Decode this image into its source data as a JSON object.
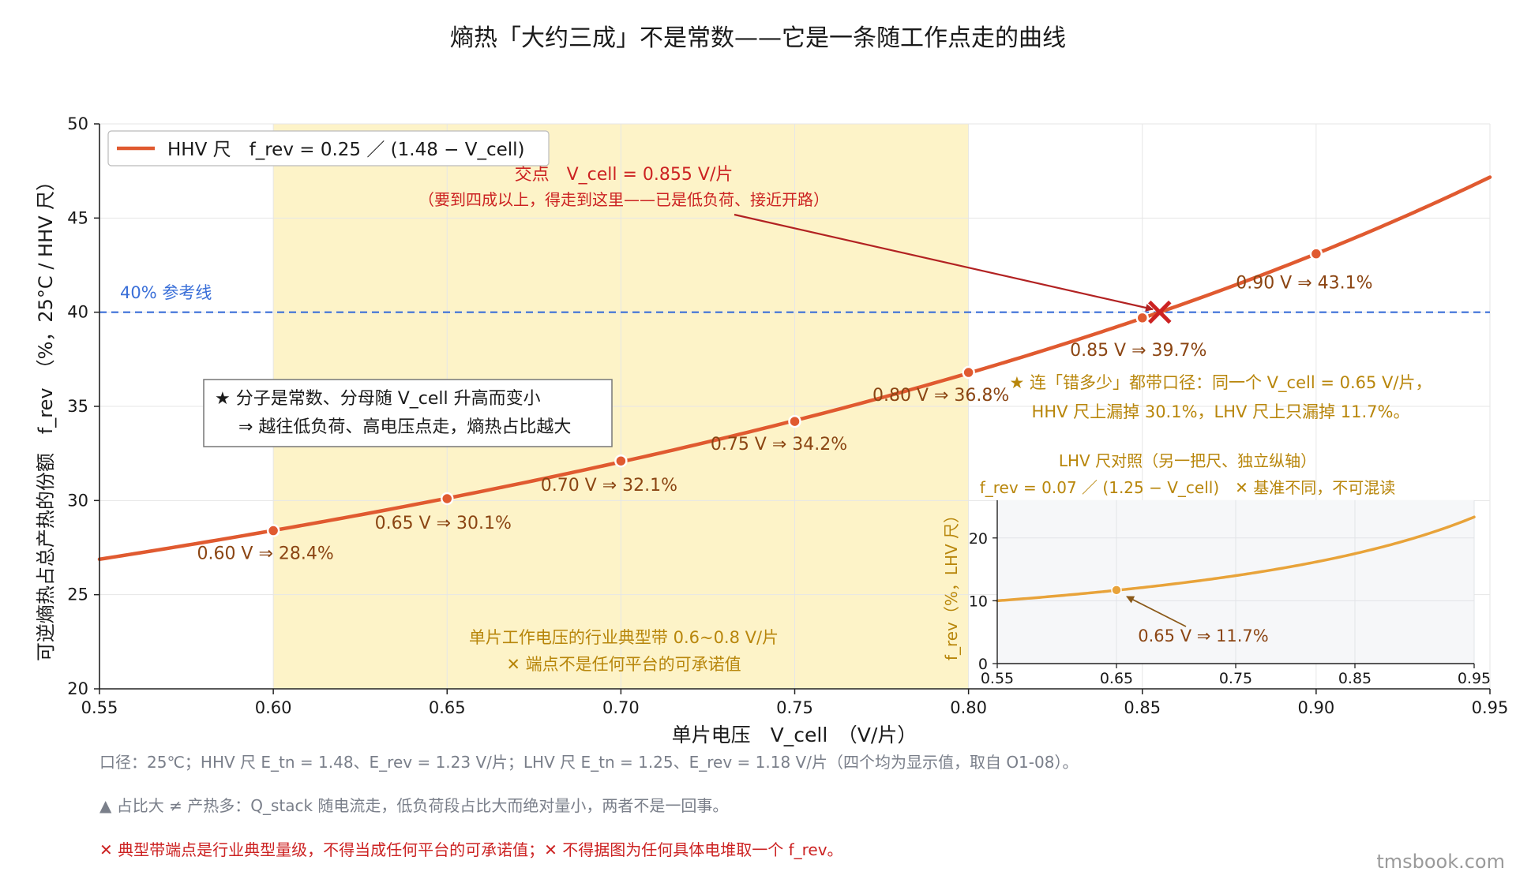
{
  "chart_data": [
    {
      "type": "line",
      "title": "熵热「大约三成」不是常数——它是一条随工作点走的曲线",
      "xlabel": "单片电压　V_cell　（V/片）",
      "ylabel": "可逆熵热占总产热的份额　f_rev　（%，25°C / HHV 尺）",
      "xlim": [
        0.55,
        0.95
      ],
      "ylim": [
        20,
        50
      ],
      "xticks": [
        "0.55",
        "0.60",
        "0.65",
        "0.70",
        "0.75",
        "0.80",
        "0.85",
        "0.90",
        "0.95"
      ],
      "yticks": [
        "20",
        "25",
        "30",
        "35",
        "40",
        "45",
        "50"
      ],
      "grid": true,
      "legend_position": "top-left",
      "series": [
        {
          "name": "HHV 尺　f_rev = 0.25 ／ (1.48 − V_cell)",
          "color": "#e05a30",
          "formula": {
            "a": 0.25,
            "b": 1.48
          }
        }
      ],
      "points": [
        {
          "x": 0.6,
          "y": 28.4,
          "label": "0.60 V ⇒ 28.4%"
        },
        {
          "x": 0.65,
          "y": 30.1,
          "label": "0.65 V ⇒ 30.1%"
        },
        {
          "x": 0.7,
          "y": 32.1,
          "label": "0.70 V ⇒ 32.1%"
        },
        {
          "x": 0.75,
          "y": 34.2,
          "label": "0.75 V ⇒ 34.2%"
        },
        {
          "x": 0.8,
          "y": 36.8,
          "label": "0.80 V ⇒ 36.8%"
        },
        {
          "x": 0.85,
          "y": 39.7,
          "label": "0.85 V ⇒ 39.7%"
        },
        {
          "x": 0.9,
          "y": 43.1,
          "label": "0.90 V ⇒ 43.1%"
        }
      ],
      "reference_line": {
        "y": 40,
        "label": "40% 参考线",
        "color": "#3a6fd8"
      },
      "band": {
        "x": [
          0.6,
          0.8
        ],
        "color": "#fdf3c8",
        "label_1": "单片工作电压的行业典型带 0.6~0.8 V/片",
        "label_2": "✕ 端点不是任何平台的可承诺值"
      },
      "intersection": {
        "x": 0.855,
        "y": 40,
        "label_1": "交点　V_cell = 0.855 V/片",
        "label_2": "（要到四成以上，得走到这里——已是低负荷、接近开路）"
      },
      "callout_box": {
        "line_1": "★ 分子是常数、分母随 V_cell 升高而变小",
        "line_2": "⇒ 越往低负荷、高电压点走，熵热占比越大"
      },
      "note": {
        "line_1": "★ 连「错多少」都带口径：同一个 V_cell = 0.65 V/片，",
        "line_2": "HHV 尺上漏掉 30.1%，LHV 尺上只漏掉 11.7%。"
      }
    },
    {
      "type": "line",
      "title": "LHV 尺对照（另一把尺、独立纵轴）",
      "subtitle": "f_rev = 0.07 ／ (1.25 − V_cell)　✕ 基准不同，不可混读",
      "ylabel": "f_rev（%，LHV 尺）",
      "xlim": [
        0.55,
        0.95
      ],
      "ylim": [
        0,
        26
      ],
      "xticks": [
        "0.55",
        "0.65",
        "0.75",
        "0.85",
        "0.95"
      ],
      "yticks": [
        "0",
        "10",
        "20"
      ],
      "series": [
        {
          "name": "",
          "color": "#e8a33a",
          "formula": {
            "a": 0.07,
            "b": 1.25
          }
        }
      ],
      "points": [
        {
          "x": 0.65,
          "y": 11.7,
          "label": "0.65 V ⇒ 11.7%"
        }
      ]
    }
  ],
  "footnotes": [
    "口径：25℃；HHV 尺 E_tn = 1.48、E_rev = 1.23 V/片；LHV 尺 E_tn = 1.25、E_rev = 1.18 V/片（四个均为显示值，取自 O1-08）。",
    "▲ 占比大 ≠ 产热多：Q_stack 随电流走，低负荷段占比大而绝对量小，两者不是一回事。",
    "✕ 典型带端点是行业典型量级，不得当成任何平台的可承诺值；✕ 不得据图为任何具体电堆取一个 f_rev。"
  ],
  "watermark": "tmsbook.com"
}
